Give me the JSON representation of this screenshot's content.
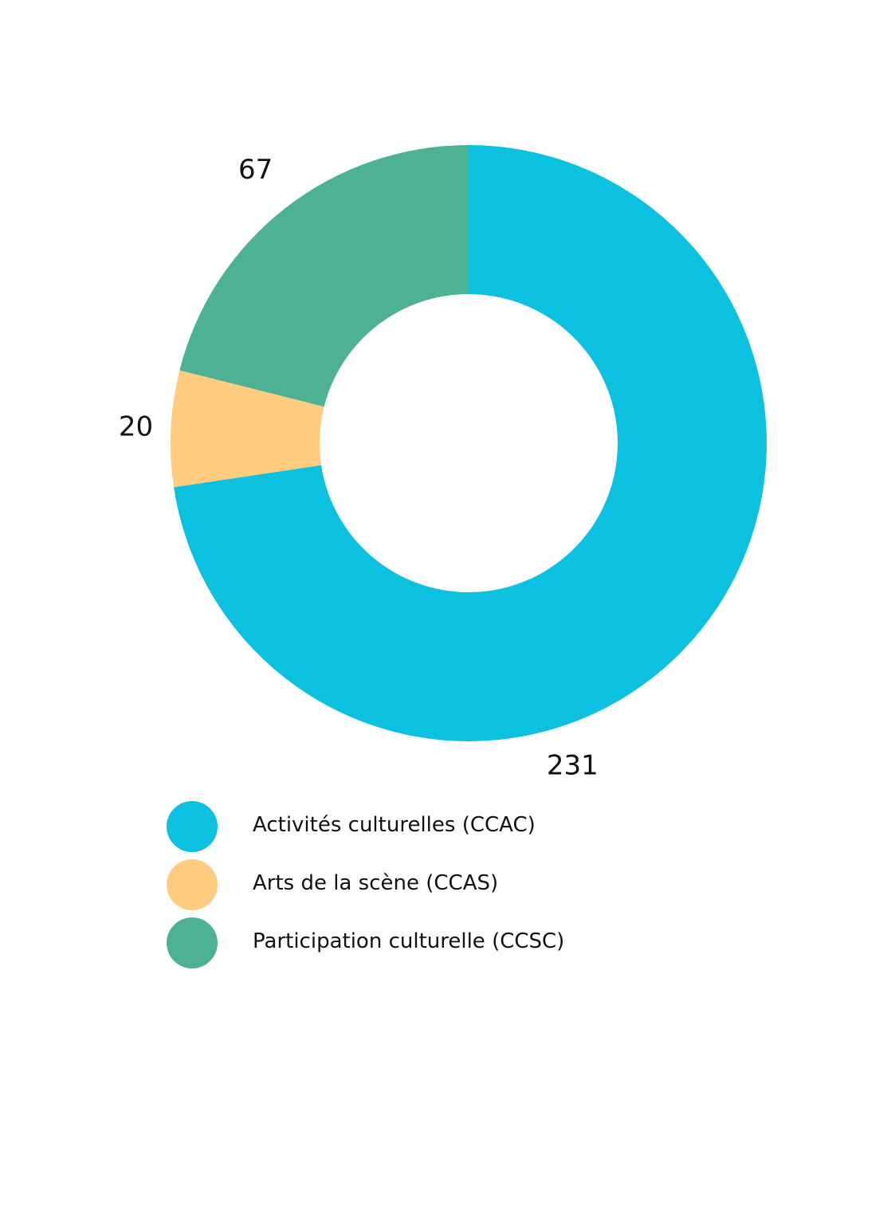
{
  "chart_data": {
    "type": "pie",
    "variant": "donut",
    "categories": [
      "Activités culturelles (CCAC)",
      "Arts de la scène (CCAS)",
      "Participation culturelle (CCSC)"
    ],
    "values": [
      231,
      20,
      67
    ],
    "colors": [
      "#0cc0df",
      "#ffcc80",
      "#4db193"
    ],
    "data_labels": [
      "231",
      "20",
      "67"
    ],
    "legend_position": "bottom-left",
    "start_angle": "top",
    "direction": "clockwise"
  },
  "legend": {
    "items": [
      {
        "label": "Activités culturelles (CCAC)",
        "color": "#0cc0df"
      },
      {
        "label": "Arts de la scène (CCAS)",
        "color": "#ffcc80"
      },
      {
        "label": "Participation culturelle (CCSC)",
        "color": "#4db193"
      }
    ]
  }
}
